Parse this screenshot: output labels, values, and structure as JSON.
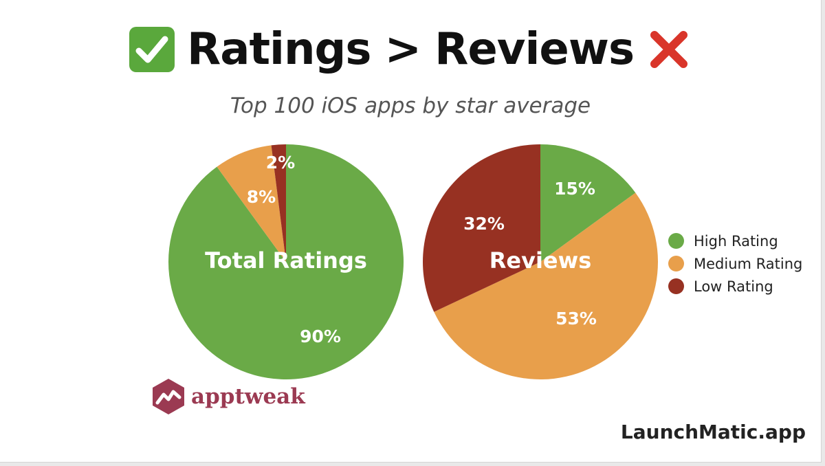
{
  "title": {
    "left_word": "Ratings",
    "separator": ">",
    "right_word": "Reviews"
  },
  "subtitle": "Top 100 iOS apps by star average",
  "chart_data": [
    {
      "type": "pie",
      "center_label": "Total Ratings",
      "categories": [
        "High Rating",
        "Medium Rating",
        "Low Rating"
      ],
      "values": [
        90,
        8,
        2
      ],
      "value_labels": [
        "90%",
        "8%",
        "2%"
      ]
    },
    {
      "type": "pie",
      "center_label": "Reviews",
      "categories": [
        "High Rating",
        "Medium Rating",
        "Low Rating"
      ],
      "values": [
        15,
        53,
        32
      ],
      "value_labels": [
        "15%",
        "53%",
        "32%"
      ]
    }
  ],
  "legend": {
    "placement": "right",
    "items": [
      {
        "label": "High Rating",
        "color": "#6aaa47"
      },
      {
        "label": "Medium Rating",
        "color": "#e89f4b"
      },
      {
        "label": "Low Rating",
        "color": "#973122"
      }
    ]
  },
  "logo": {
    "text": "apptweak",
    "icon": "apptweak-hexagon-icon",
    "color": "#9b3a52"
  },
  "credit": "LaunchMatic.app",
  "icons": {
    "left": "check-mark-icon",
    "right": "cross-mark-icon"
  }
}
